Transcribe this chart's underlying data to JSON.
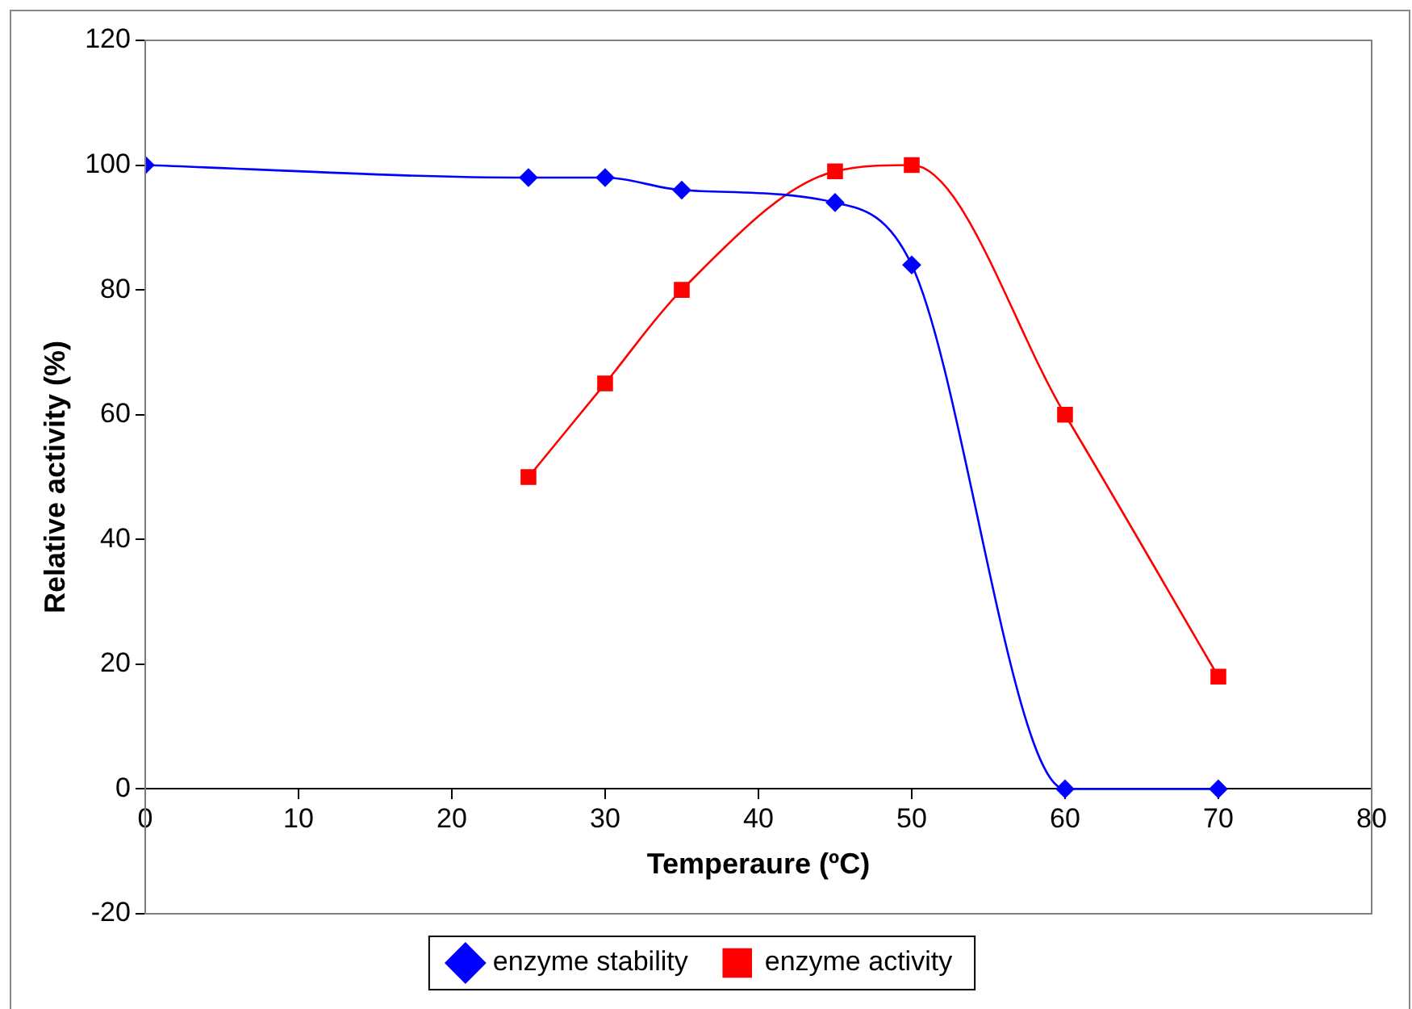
{
  "chart_data": {
    "type": "line",
    "xlabel": "Temperaure (ºC)",
    "ylabel": "Relative activity (%)",
    "xlim": [
      0,
      80
    ],
    "xticks": [
      0,
      10,
      20,
      30,
      40,
      50,
      60,
      70,
      80
    ],
    "ylim": [
      -20,
      120
    ],
    "yticks": [
      -20,
      0,
      20,
      40,
      60,
      80,
      100,
      120
    ],
    "grid": false,
    "legend": "bottom",
    "series": [
      {
        "name": "enzyme stability",
        "color": "#0000ff",
        "marker": "diamond",
        "x": [
          0,
          25,
          30,
          35,
          45,
          50,
          60,
          70
        ],
        "values": [
          100,
          98,
          98,
          96,
          94,
          84,
          0,
          0
        ]
      },
      {
        "name": "enzyme activity",
        "color": "#ff0000",
        "marker": "square",
        "x": [
          25,
          30,
          35,
          45,
          50,
          60,
          70
        ],
        "values": [
          50,
          65,
          80,
          99,
          100,
          60,
          18
        ]
      }
    ]
  }
}
